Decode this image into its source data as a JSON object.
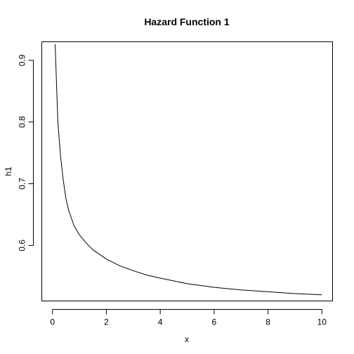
{
  "chart_data": {
    "type": "line",
    "title": "Hazard Function 1",
    "xlabel": "x",
    "ylabel": "h1",
    "xlim": [
      0,
      10
    ],
    "ylim": [
      0.51,
      0.93
    ],
    "xticks": [
      0,
      2,
      4,
      6,
      8,
      10
    ],
    "xtick_labels": [
      "0",
      "2",
      "4",
      "6",
      "8",
      "10"
    ],
    "yticks": [
      0.6,
      0.7,
      0.8,
      0.9
    ],
    "ytick_labels": [
      "0.6",
      "0.7",
      "0.8",
      "0.9"
    ],
    "grid": false,
    "series": [
      {
        "color": "#000000",
        "x": [
          0.1,
          0.2,
          0.3,
          0.4,
          0.5,
          0.6,
          0.8,
          1.0,
          1.25,
          1.5,
          2.0,
          2.5,
          3.0,
          3.5,
          4.0,
          5.0,
          6.0,
          7.0,
          8.0,
          9.0,
          10.0
        ],
        "y": [
          0.926,
          0.8,
          0.745,
          0.706,
          0.676,
          0.657,
          0.632,
          0.617,
          0.604,
          0.593,
          0.578,
          0.567,
          0.559,
          0.552,
          0.547,
          0.538,
          0.532,
          0.528,
          0.525,
          0.522,
          0.52
        ]
      }
    ]
  }
}
